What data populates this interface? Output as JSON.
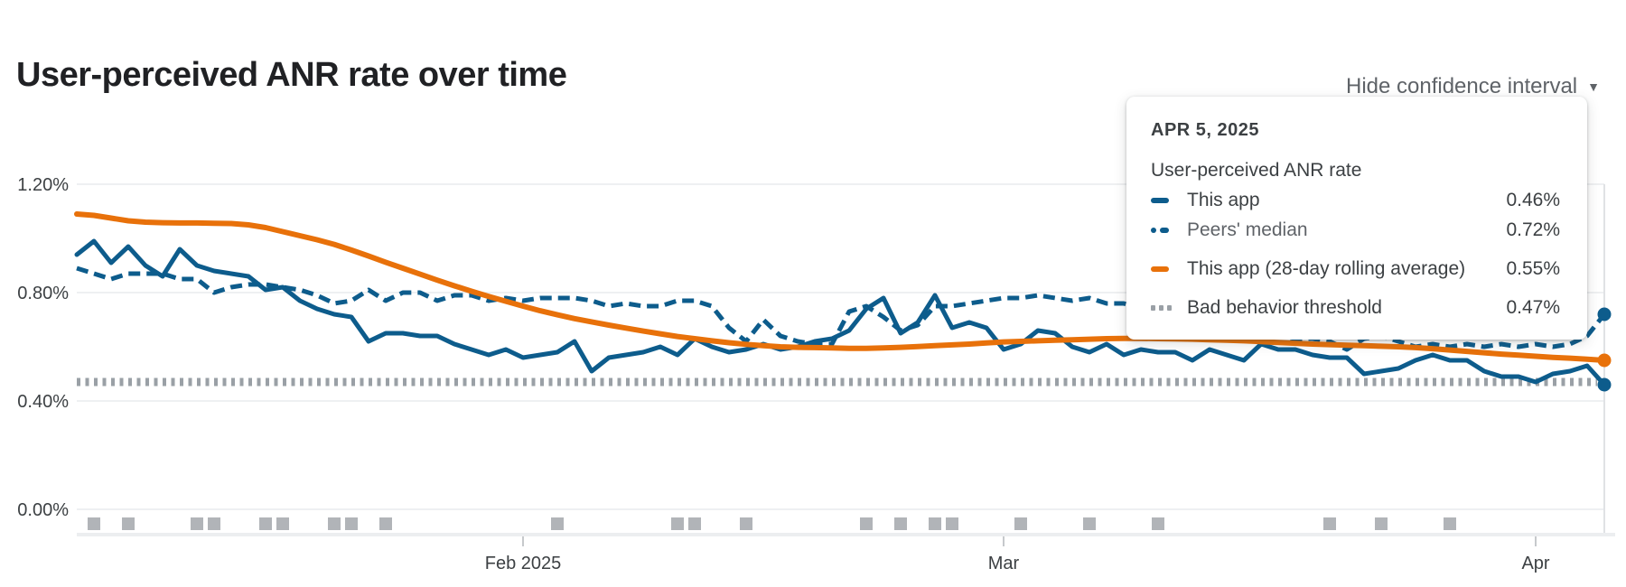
{
  "page": {
    "title": "User-perceived ANR rate over time"
  },
  "controls": {
    "confidence_toggle_label": "Hide confidence interval",
    "caret_icon": "▼"
  },
  "tooltip": {
    "date": "APR 5, 2025",
    "metric": "User-perceived ANR rate",
    "rows": [
      {
        "label": "This app",
        "value": "0.46%"
      },
      {
        "label": "Peers' median",
        "value": "0.72%"
      },
      {
        "label": "This app (28-day rolling average)",
        "value": "0.55%"
      },
      {
        "label": "Bad behavior threshold",
        "value": "0.47%"
      }
    ]
  },
  "colors": {
    "this_app": "#0d5c8c",
    "peers_median": "#0d5c8c",
    "rolling_avg": "#e8710a",
    "threshold": "#9aa0a6",
    "release_marker": "#b1b4b8"
  },
  "chart_data": {
    "type": "line",
    "title": "User-perceived ANR rate over time",
    "unit": "%",
    "x_start_date": "2025-01-06",
    "x_end_date": "2025-04-05",
    "hover_date": "APR 5, 2025",
    "y_axis": {
      "max": 1.2,
      "ticks": [
        {
          "value": 0.0,
          "label": "0.00%"
        },
        {
          "value": 0.4,
          "label": "0.40%"
        },
        {
          "value": 0.8,
          "label": "0.80%"
        },
        {
          "value": 1.2,
          "label": "1.20%"
        }
      ]
    },
    "x_axis": {
      "ticks": [
        {
          "day": 26,
          "label": "Feb 2025"
        },
        {
          "day": 54,
          "label": "Mar"
        },
        {
          "day": 85,
          "label": "Apr"
        }
      ]
    },
    "series": [
      {
        "name": "This app",
        "style": "solid",
        "color_key": "this_app",
        "values": [
          0.94,
          0.99,
          0.91,
          0.97,
          0.9,
          0.86,
          0.96,
          0.9,
          0.88,
          0.87,
          0.86,
          0.81,
          0.82,
          0.77,
          0.74,
          0.72,
          0.71,
          0.62,
          0.65,
          0.65,
          0.64,
          0.64,
          0.61,
          0.59,
          0.57,
          0.59,
          0.56,
          0.57,
          0.58,
          0.62,
          0.51,
          0.56,
          0.57,
          0.58,
          0.6,
          0.57,
          0.63,
          0.6,
          0.58,
          0.59,
          0.61,
          0.59,
          0.6,
          0.62,
          0.63,
          0.66,
          0.74,
          0.78,
          0.65,
          0.69,
          0.79,
          0.67,
          0.69,
          0.67,
          0.59,
          0.61,
          0.66,
          0.65,
          0.6,
          0.58,
          0.61,
          0.57,
          0.59,
          0.58,
          0.58,
          0.55,
          0.59,
          0.57,
          0.55,
          0.61,
          0.59,
          0.59,
          0.57,
          0.56,
          0.56,
          0.5,
          0.51,
          0.52,
          0.55,
          0.57,
          0.55,
          0.55,
          0.51,
          0.49,
          0.49,
          0.47,
          0.5,
          0.51,
          0.53,
          0.46
        ]
      },
      {
        "name": "Peers' median",
        "style": "dashed",
        "color_key": "peers_median",
        "values": [
          0.89,
          0.87,
          0.85,
          0.87,
          0.87,
          0.87,
          0.85,
          0.85,
          0.8,
          0.82,
          0.83,
          0.83,
          0.82,
          0.81,
          0.79,
          0.76,
          0.77,
          0.81,
          0.77,
          0.8,
          0.8,
          0.77,
          0.79,
          0.79,
          0.77,
          0.78,
          0.77,
          0.78,
          0.78,
          0.78,
          0.77,
          0.75,
          0.76,
          0.75,
          0.75,
          0.77,
          0.77,
          0.75,
          0.67,
          0.62,
          0.7,
          0.64,
          0.62,
          0.61,
          0.61,
          0.73,
          0.75,
          0.71,
          0.66,
          0.68,
          0.75,
          0.75,
          0.76,
          0.77,
          0.78,
          0.78,
          0.79,
          0.78,
          0.77,
          0.78,
          0.76,
          0.76,
          0.74,
          0.72,
          0.7,
          0.68,
          0.67,
          0.66,
          0.65,
          0.64,
          0.64,
          0.63,
          0.63,
          0.62,
          0.59,
          0.63,
          0.64,
          0.62,
          0.6,
          0.61,
          0.6,
          0.61,
          0.6,
          0.61,
          0.6,
          0.61,
          0.6,
          0.61,
          0.64,
          0.72
        ]
      },
      {
        "name": "This app (28-day rolling average)",
        "style": "solid",
        "color_key": "rolling_avg",
        "values": [
          1.09,
          1.085,
          1.075,
          1.065,
          1.06,
          1.058,
          1.057,
          1.057,
          1.056,
          1.055,
          1.05,
          1.04,
          1.025,
          1.01,
          0.995,
          0.978,
          0.957,
          0.935,
          0.912,
          0.89,
          0.868,
          0.846,
          0.825,
          0.805,
          0.786,
          0.768,
          0.75,
          0.733,
          0.718,
          0.704,
          0.692,
          0.68,
          0.669,
          0.658,
          0.648,
          0.638,
          0.63,
          0.622,
          0.615,
          0.609,
          0.604,
          0.6,
          0.598,
          0.597,
          0.596,
          0.594,
          0.594,
          0.596,
          0.598,
          0.601,
          0.604,
          0.607,
          0.61,
          0.614,
          0.618,
          0.62,
          0.622,
          0.624,
          0.626,
          0.628,
          0.63,
          0.631,
          0.631,
          0.63,
          0.629,
          0.628,
          0.626,
          0.624,
          0.622,
          0.619,
          0.616,
          0.613,
          0.61,
          0.608,
          0.606,
          0.604,
          0.602,
          0.6,
          0.597,
          0.593,
          0.588,
          0.583,
          0.578,
          0.573,
          0.569,
          0.565,
          0.561,
          0.558,
          0.554,
          0.55
        ]
      }
    ],
    "threshold": {
      "name": "Bad behavior threshold",
      "value": 0.47
    },
    "release_days": [
      1,
      3,
      7,
      8,
      11,
      12,
      15,
      16,
      18,
      28,
      35,
      36,
      39,
      46,
      48,
      50,
      51,
      55,
      59,
      63,
      73,
      76,
      80
    ],
    "end_markers": [
      {
        "series_index": 1,
        "value": 0.72
      },
      {
        "series_index": 0,
        "value": 0.46
      },
      {
        "series_index": 2,
        "value": 0.55
      }
    ]
  }
}
